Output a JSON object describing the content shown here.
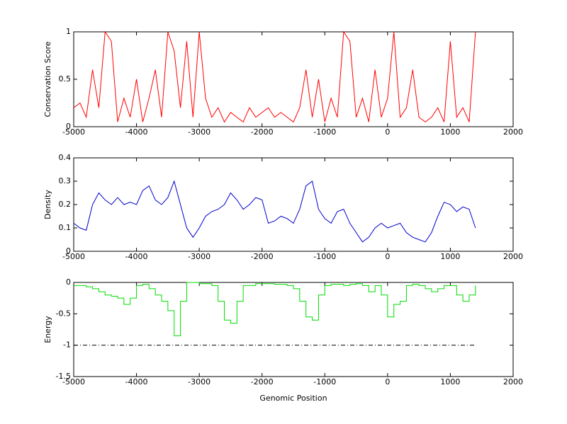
{
  "chart_data": [
    {
      "type": "line",
      "ylabel": "Conservation Score",
      "x": [
        -5000,
        -4900,
        -4800,
        -4700,
        -4600,
        -4500,
        -4400,
        -4300,
        -4200,
        -4100,
        -4000,
        -3900,
        -3800,
        -3700,
        -3600,
        -3500,
        -3400,
        -3300,
        -3200,
        -3100,
        -3000,
        -2900,
        -2800,
        -2700,
        -2600,
        -2500,
        -2400,
        -2300,
        -2200,
        -2100,
        -2000,
        -1900,
        -1800,
        -1700,
        -1600,
        -1500,
        -1400,
        -1300,
        -1200,
        -1100,
        -1000,
        -900,
        -800,
        -700,
        -600,
        -500,
        -400,
        -300,
        -200,
        -100,
        0,
        100,
        200,
        300,
        400,
        500,
        600,
        700,
        800,
        900,
        1000,
        1100,
        1200,
        1300,
        1400
      ],
      "series": [
        {
          "color": "#ff0000",
          "values": [
            0.2,
            0.25,
            0.1,
            0.6,
            0.2,
            1,
            0.9,
            0.05,
            0.3,
            0.1,
            0.5,
            0.05,
            0.3,
            0.6,
            0.1,
            1,
            0.8,
            0.2,
            0.9,
            0.1,
            1,
            0.3,
            0.1,
            0.2,
            0.05,
            0.15,
            0.1,
            0.05,
            0.2,
            0.1,
            0.15,
            0.2,
            0.1,
            0.15,
            0.1,
            0.05,
            0.2,
            0.6,
            0.1,
            0.5,
            0.05,
            0.3,
            0.1,
            1,
            0.9,
            0.1,
            0.3,
            0.05,
            0.6,
            0.1,
            0.3,
            1,
            0.1,
            0.2,
            0.6,
            0.1,
            0.05,
            0.1,
            0.2,
            0.05,
            0.9,
            0.1,
            0.2,
            0.05,
            1
          ]
        }
      ],
      "xlim": [
        -5000,
        2000
      ],
      "xticks": [
        -5000,
        -4000,
        -3000,
        -2000,
        -1000,
        0,
        1000,
        2000
      ],
      "ylim": [
        0,
        1
      ],
      "yticks": [
        0,
        0.5,
        1
      ]
    },
    {
      "type": "line",
      "ylabel": "Density",
      "x": [
        -5000,
        -4900,
        -4800,
        -4700,
        -4600,
        -4500,
        -4400,
        -4300,
        -4200,
        -4100,
        -4000,
        -3900,
        -3800,
        -3700,
        -3600,
        -3500,
        -3400,
        -3300,
        -3200,
        -3100,
        -3000,
        -2900,
        -2800,
        -2700,
        -2600,
        -2500,
        -2400,
        -2300,
        -2200,
        -2100,
        -2000,
        -1900,
        -1800,
        -1700,
        -1600,
        -1500,
        -1400,
        -1300,
        -1200,
        -1100,
        -1000,
        -900,
        -800,
        -700,
        -600,
        -500,
        -400,
        -300,
        -200,
        -100,
        0,
        100,
        200,
        300,
        400,
        500,
        600,
        700,
        800,
        900,
        1000,
        1100,
        1200,
        1300,
        1400
      ],
      "series": [
        {
          "color": "#0000cc",
          "values": [
            0.12,
            0.1,
            0.09,
            0.2,
            0.25,
            0.22,
            0.2,
            0.23,
            0.2,
            0.21,
            0.2,
            0.26,
            0.28,
            0.22,
            0.2,
            0.23,
            0.3,
            0.2,
            0.1,
            0.06,
            0.1,
            0.15,
            0.17,
            0.18,
            0.2,
            0.25,
            0.22,
            0.18,
            0.2,
            0.23,
            0.22,
            0.12,
            0.13,
            0.15,
            0.14,
            0.12,
            0.18,
            0.28,
            0.3,
            0.18,
            0.14,
            0.12,
            0.17,
            0.18,
            0.12,
            0.08,
            0.04,
            0.06,
            0.1,
            0.12,
            0.1,
            0.11,
            0.12,
            0.08,
            0.06,
            0.05,
            0.04,
            0.08,
            0.15,
            0.21,
            0.2,
            0.17,
            0.19,
            0.18,
            0.1
          ]
        }
      ],
      "xlim": [
        -5000,
        2000
      ],
      "xticks": [
        -5000,
        -4000,
        -3000,
        -2000,
        -1000,
        0,
        1000,
        2000
      ],
      "ylim": [
        0,
        0.4
      ],
      "yticks": [
        0,
        0.1,
        0.2,
        0.3,
        0.4
      ]
    },
    {
      "type": "line",
      "ylabel": "Energy",
      "xlabel": "Genomic Position",
      "x": [
        -5000,
        -4900,
        -4800,
        -4700,
        -4600,
        -4500,
        -4400,
        -4300,
        -4200,
        -4100,
        -4000,
        -3900,
        -3800,
        -3700,
        -3600,
        -3500,
        -3400,
        -3300,
        -3200,
        -3100,
        -3000,
        -2900,
        -2800,
        -2700,
        -2600,
        -2500,
        -2400,
        -2300,
        -2200,
        -2100,
        -2000,
        -1900,
        -1800,
        -1700,
        -1600,
        -1500,
        -1400,
        -1300,
        -1200,
        -1100,
        -1000,
        -900,
        -800,
        -700,
        -600,
        -500,
        -400,
        -300,
        -200,
        -100,
        0,
        100,
        200,
        300,
        400,
        500,
        600,
        700,
        800,
        900,
        1000,
        1100,
        1200,
        1300,
        1400
      ],
      "series": [
        {
          "color": "#00dd00",
          "step": true,
          "values": [
            -0.05,
            -0.05,
            -0.07,
            -0.1,
            -0.15,
            -0.2,
            -0.22,
            -0.25,
            -0.35,
            -0.25,
            -0.05,
            -0.03,
            -0.1,
            -0.2,
            -0.3,
            -0.45,
            -0.85,
            -0.3,
            0,
            0,
            -0.02,
            -0.02,
            -0.05,
            -0.3,
            -0.6,
            -0.65,
            -0.3,
            -0.05,
            -0.05,
            -0.02,
            -0.02,
            -0.02,
            -0.03,
            -0.03,
            -0.05,
            -0.1,
            -0.3,
            -0.55,
            -0.6,
            -0.2,
            -0.05,
            -0.03,
            -0.03,
            -0.05,
            -0.03,
            -0.02,
            -0.05,
            -0.15,
            -0.05,
            -0.2,
            -0.55,
            -0.35,
            -0.3,
            -0.05,
            -0.03,
            -0.05,
            -0.1,
            -0.15,
            -0.1,
            -0.05,
            -0.05,
            -0.2,
            -0.3,
            -0.2,
            -0.05
          ]
        },
        {
          "color": "#000000",
          "linestyle": "dashdot",
          "x": [
            -5000,
            1400
          ],
          "values": [
            -1,
            -1
          ]
        }
      ],
      "xlim": [
        -5000,
        2000
      ],
      "xticks": [
        -5000,
        -4000,
        -3000,
        -2000,
        -1000,
        0,
        1000,
        2000
      ],
      "ylim": [
        -1.5,
        0
      ],
      "yticks": [
        -1.5,
        -1,
        -0.5,
        0
      ]
    }
  ]
}
